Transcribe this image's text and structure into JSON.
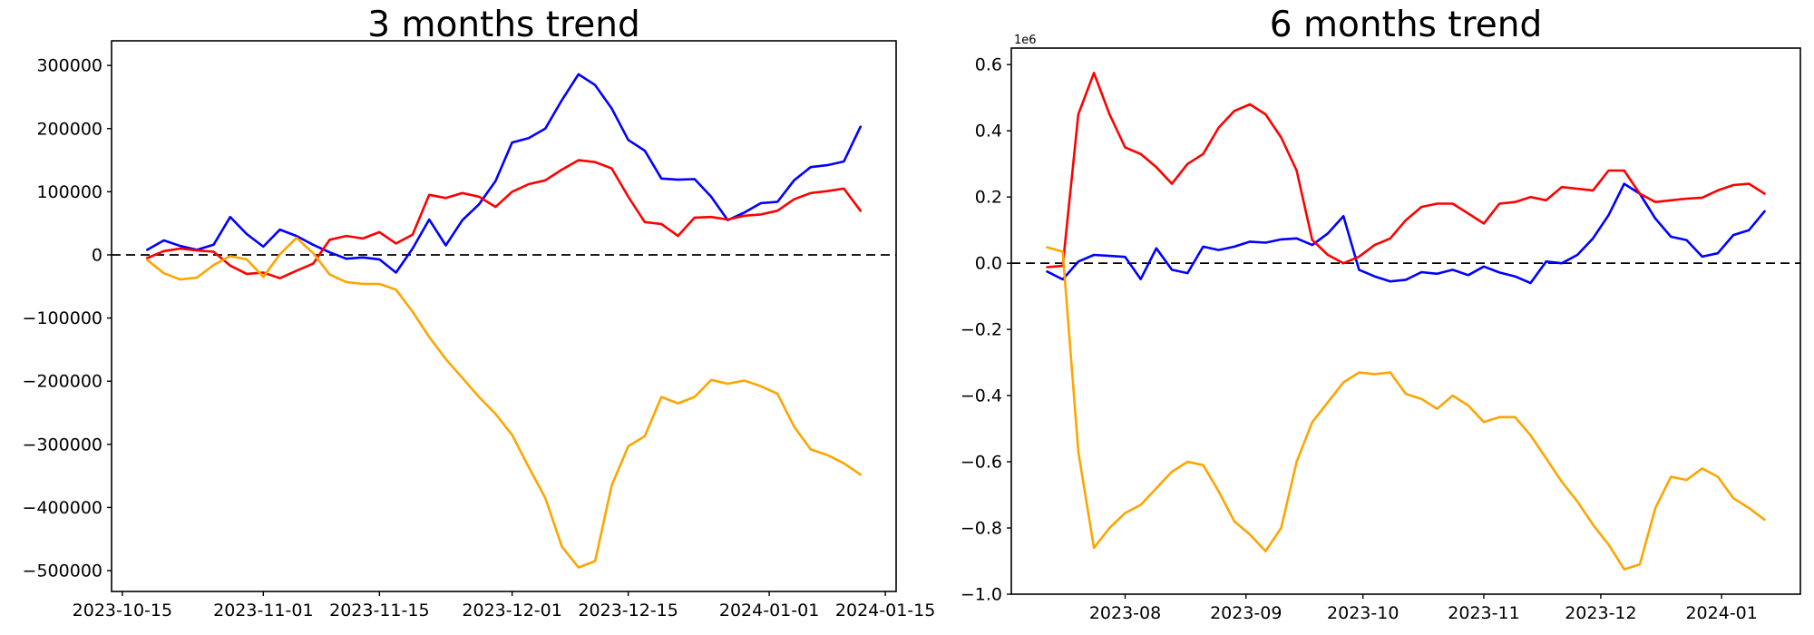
{
  "figure_background": "#ffffff",
  "chart_data": [
    {
      "type": "line",
      "title": "3 months trend",
      "y_offset_label": null,
      "grid": false,
      "legend": null,
      "zero_dashline": true,
      "xlim_days": [
        -4.3,
        90.3
      ],
      "ylim": [
        -533000,
        339000
      ],
      "x_ticks": [
        {
          "label": "2023-10-15",
          "day": -3
        },
        {
          "label": "2023-11-01",
          "day": 14
        },
        {
          "label": "2023-11-15",
          "day": 28
        },
        {
          "label": "2023-12-01",
          "day": 44
        },
        {
          "label": "2023-12-15",
          "day": 58
        },
        {
          "label": "2024-01-01",
          "day": 75
        },
        {
          "label": "2024-01-15",
          "day": 89
        }
      ],
      "y_ticks": [
        {
          "label": "300000",
          "value": 300000
        },
        {
          "label": "200000",
          "value": 200000
        },
        {
          "label": "100000",
          "value": 100000
        },
        {
          "label": "0",
          "value": 0
        },
        {
          "label": "−100000",
          "value": -100000
        },
        {
          "label": "−200000",
          "value": -200000
        },
        {
          "label": "−300000",
          "value": -300000
        },
        {
          "label": "−400000",
          "value": -400000
        },
        {
          "label": "−500000",
          "value": -500000
        }
      ],
      "x_days": [
        0,
        2,
        4,
        6,
        8,
        10,
        12,
        14,
        16,
        18,
        20,
        22,
        24,
        26,
        28,
        30,
        32,
        34,
        36,
        38,
        40,
        42,
        44,
        46,
        48,
        50,
        52,
        54,
        56,
        58,
        60,
        62,
        64,
        66,
        68,
        70,
        72,
        74,
        76,
        78,
        80,
        82,
        84,
        86
      ],
      "series": [
        {
          "name": "blue",
          "color": "#0000ff",
          "values": [
            8000,
            23000,
            14000,
            8000,
            16000,
            60000,
            33000,
            13000,
            40000,
            30000,
            16000,
            4000,
            -6000,
            -4000,
            -7000,
            -28000,
            10000,
            56000,
            15000,
            55000,
            80000,
            117000,
            178000,
            185000,
            200000,
            245000,
            286000,
            269000,
            232000,
            182000,
            165000,
            121000,
            119000,
            120000,
            92000,
            55000,
            67000,
            82000,
            84000,
            118000,
            139000,
            142000,
            148000,
            203000
          ]
        },
        {
          "name": "red",
          "color": "#ff0000",
          "values": [
            -5000,
            6000,
            10000,
            7000,
            5000,
            -17000,
            -30000,
            -28000,
            -37000,
            -25000,
            -14000,
            24000,
            30000,
            26000,
            36000,
            18000,
            32000,
            95000,
            90000,
            98000,
            92000,
            76000,
            100000,
            112000,
            118000,
            135000,
            150000,
            147000,
            137000,
            92000,
            52000,
            49000,
            30000,
            59000,
            60000,
            56000,
            62000,
            64000,
            70000,
            88000,
            98000,
            101000,
            105000,
            70000
          ]
        },
        {
          "name": "orange",
          "color": "#ffa500",
          "values": [
            -8000,
            -29000,
            -39000,
            -36000,
            -16000,
            -2000,
            -7000,
            -35000,
            1000,
            27000,
            3000,
            -31000,
            -43000,
            -46000,
            -46000,
            -55000,
            -90000,
            -130000,
            -165000,
            -195000,
            -225000,
            -252000,
            -285000,
            -336000,
            -385000,
            -462000,
            -495000,
            -485000,
            -365000,
            -303000,
            -287000,
            -225000,
            -235000,
            -225000,
            -198000,
            -204000,
            -199000,
            -208000,
            -220000,
            -272000,
            -308000,
            -317000,
            -330000,
            -348000
          ]
        }
      ]
    },
    {
      "type": "line",
      "title": "6 months trend",
      "y_offset_label": "1e6",
      "grid": false,
      "legend": null,
      "zero_dashline": true,
      "xlim_days": [
        -9.2,
        193.2
      ],
      "ylim": [
        -1.0,
        0.65
      ],
      "x_ticks": [
        {
          "label": "2023-08",
          "day": 20
        },
        {
          "label": "2023-09",
          "day": 51
        },
        {
          "label": "2023-10",
          "day": 81
        },
        {
          "label": "2023-11",
          "day": 112
        },
        {
          "label": "2023-12",
          "day": 142
        },
        {
          "label": "2024-01",
          "day": 173
        }
      ],
      "y_ticks": [
        {
          "label": "0.6",
          "value": 0.6
        },
        {
          "label": "0.4",
          "value": 0.4
        },
        {
          "label": "0.2",
          "value": 0.2
        },
        {
          "label": "0.0",
          "value": 0.0
        },
        {
          "label": "−0.2",
          "value": -0.2
        },
        {
          "label": "−0.4",
          "value": -0.4
        },
        {
          "label": "−0.6",
          "value": -0.6
        },
        {
          "label": "−0.8",
          "value": -0.8
        },
        {
          "label": "−1.0",
          "value": -1.0
        }
      ],
      "x_days": [
        0,
        4,
        8,
        12,
        16,
        20,
        24,
        28,
        32,
        36,
        40,
        44,
        48,
        52,
        56,
        60,
        64,
        68,
        72,
        76,
        80,
        84,
        88,
        92,
        96,
        100,
        104,
        108,
        112,
        116,
        120,
        124,
        128,
        132,
        136,
        140,
        144,
        148,
        152,
        156,
        160,
        164,
        168,
        172,
        176,
        180,
        184
      ],
      "series": [
        {
          "name": "blue",
          "color": "#0000ff",
          "values": [
            -0.025,
            -0.049,
            0.005,
            0.025,
            0.022,
            0.019,
            -0.048,
            0.045,
            -0.02,
            -0.03,
            0.05,
            0.04,
            0.05,
            0.065,
            0.062,
            0.072,
            0.075,
            0.055,
            0.09,
            0.142,
            -0.02,
            -0.04,
            -0.055,
            -0.05,
            -0.027,
            -0.032,
            -0.02,
            -0.036,
            -0.01,
            -0.028,
            -0.04,
            -0.06,
            0.005,
            0.0,
            0.025,
            0.075,
            0.145,
            0.24,
            0.21,
            0.135,
            0.08,
            0.07,
            0.02,
            0.03,
            0.085,
            0.1,
            0.157
          ]
        },
        {
          "name": "red",
          "color": "#ff0000",
          "values": [
            -0.012,
            -0.008,
            0.45,
            0.575,
            0.45,
            0.35,
            0.33,
            0.29,
            0.24,
            0.3,
            0.33,
            0.41,
            0.46,
            0.48,
            0.45,
            0.38,
            0.28,
            0.07,
            0.025,
            0.0,
            0.02,
            0.055,
            0.075,
            0.13,
            0.17,
            0.18,
            0.18,
            0.15,
            0.12,
            0.18,
            0.185,
            0.2,
            0.19,
            0.23,
            0.225,
            0.22,
            0.28,
            0.28,
            0.21,
            0.185,
            0.19,
            0.195,
            0.198,
            0.22,
            0.236,
            0.24,
            0.21
          ]
        },
        {
          "name": "orange",
          "color": "#ffa500",
          "values": [
            0.048,
            0.035,
            -0.57,
            -0.86,
            -0.8,
            -0.755,
            -0.73,
            -0.68,
            -0.63,
            -0.6,
            -0.61,
            -0.69,
            -0.78,
            -0.82,
            -0.87,
            -0.8,
            -0.6,
            -0.48,
            -0.42,
            -0.36,
            -0.33,
            -0.335,
            -0.33,
            -0.395,
            -0.41,
            -0.44,
            -0.4,
            -0.43,
            -0.48,
            -0.465,
            -0.465,
            -0.52,
            -0.59,
            -0.66,
            -0.72,
            -0.79,
            -0.85,
            -0.925,
            -0.91,
            -0.74,
            -0.645,
            -0.655,
            -0.62,
            -0.645,
            -0.71,
            -0.74,
            -0.775
          ]
        }
      ]
    }
  ]
}
